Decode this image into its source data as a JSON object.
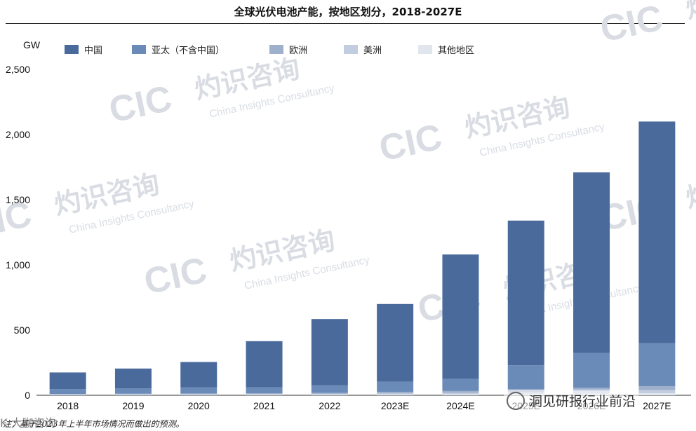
{
  "chart_data": {
    "type": "bar",
    "stacked": true,
    "title": "全球光伏电池产能，按地区划分，2018-2027E",
    "unit": "GW",
    "categories": [
      "2018",
      "2019",
      "2020",
      "2021",
      "2022",
      "2023E",
      "2024E",
      "2025E",
      "2026E",
      "2027E"
    ],
    "y_ticks": [
      "0",
      "500",
      "1,000",
      "1,500",
      "2,000",
      "2,500"
    ],
    "ylim": [
      0,
      2500
    ],
    "legend_position": "top",
    "series": [
      {
        "name": "其他地区",
        "color": "#e1e6ee",
        "values": [
          3,
          3,
          3,
          4,
          5,
          6,
          8,
          10,
          12,
          15
        ]
      },
      {
        "name": "美洲",
        "color": "#c3cde0",
        "values": [
          3,
          4,
          5,
          5,
          6,
          8,
          10,
          15,
          20,
          25
        ]
      },
      {
        "name": "欧洲",
        "color": "#9fb0cc",
        "values": [
          4,
          5,
          6,
          7,
          8,
          12,
          15,
          20,
          25,
          30
        ]
      },
      {
        "name": "亚太（不含中国）",
        "color": "#6a8ab8",
        "values": [
          38,
          40,
          46,
          45,
          57,
          78,
          92,
          185,
          268,
          330
        ]
      },
      {
        "name": "中国",
        "color": "#4a6a9c",
        "values": [
          127,
          153,
          195,
          354,
          509,
          596,
          955,
          1110,
          1385,
          1700
        ]
      }
    ],
    "legend_order": [
      "中国",
      "亚太（不含中国）",
      "欧洲",
      "美洲",
      "其他地区"
    ]
  },
  "watermark": {
    "logo": "CIC",
    "cn": "灼识咨询",
    "en": "China Insights Consultancy"
  },
  "note": "注：基于2023年上半年市场情况而做出的预测。",
  "source_badge": "洞见研报行业前沿",
  "corner_logo": "K 大咖咨询"
}
